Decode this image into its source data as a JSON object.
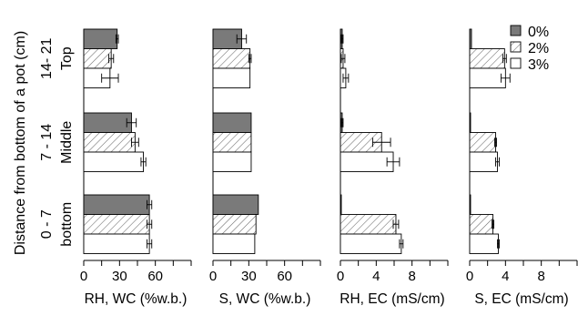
{
  "chart_data": {
    "type": "bar",
    "orientation": "horizontal",
    "ylabel": "Distance from bottom of a pot (cm)",
    "groups": [
      {
        "range": "14- 21",
        "name": "Top"
      },
      {
        "range": "7 - 14",
        "name": "Middle"
      },
      {
        "range": "0 - 7",
        "name": "bottom"
      }
    ],
    "legend": {
      "position": "top-right",
      "entries": [
        "0%",
        "2%",
        "3%"
      ]
    },
    "series_styles": [
      "dark-gray fill",
      "diagonal hatch",
      "white fill"
    ],
    "panels": [
      {
        "xlabel": "RH, WC (%w.b.)",
        "xlim": [
          0,
          90
        ],
        "ticks": [
          0,
          30,
          60
        ],
        "values": [
          [
            28,
            23,
            22
          ],
          [
            40,
            43,
            50
          ],
          [
            55,
            55,
            55
          ]
        ],
        "errors": [
          [
            1,
            2,
            7
          ],
          [
            4,
            3,
            2
          ],
          [
            2,
            2,
            2
          ]
        ]
      },
      {
        "xlabel": "S, WC (%w.b.)",
        "xlim": [
          0,
          90
        ],
        "ticks": [
          0,
          30,
          60
        ],
        "values": [
          [
            24,
            31,
            31
          ],
          [
            32,
            32,
            32
          ],
          [
            38,
            36,
            35
          ]
        ],
        "errors": [
          [
            4,
            1,
            0
          ],
          [
            0,
            0,
            0
          ],
          [
            0,
            0,
            0
          ]
        ]
      },
      {
        "xlabel": "RH, EC (mS/cm)",
        "xlim": [
          0,
          12
        ],
        "ticks": [
          0,
          4,
          8
        ],
        "values": [
          [
            0.2,
            0.3,
            0.6
          ],
          [
            0.2,
            4.6,
            5.9
          ],
          [
            0.1,
            6.2,
            6.8
          ]
        ],
        "errors": [
          [
            0.1,
            0.2,
            0.3
          ],
          [
            0.1,
            1.0,
            0.7
          ],
          [
            0,
            0.3,
            0.2
          ]
        ]
      },
      {
        "xlabel": "S, EC (mS/cm)",
        "xlim": [
          0,
          12
        ],
        "ticks": [
          0,
          4,
          8
        ],
        "values": [
          [
            0.2,
            3.9,
            4.0
          ],
          [
            0.1,
            2.9,
            3.1
          ],
          [
            0.1,
            2.6,
            3.2
          ]
        ],
        "errors": [
          [
            0,
            0.2,
            0.5
          ],
          [
            0,
            0.1,
            0.2
          ],
          [
            0,
            0.1,
            0.1
          ]
        ]
      }
    ]
  },
  "colors": {
    "bar_dark": "#7a7a7a",
    "hatch_line": "#6a6a6a",
    "axis": "#000000"
  }
}
